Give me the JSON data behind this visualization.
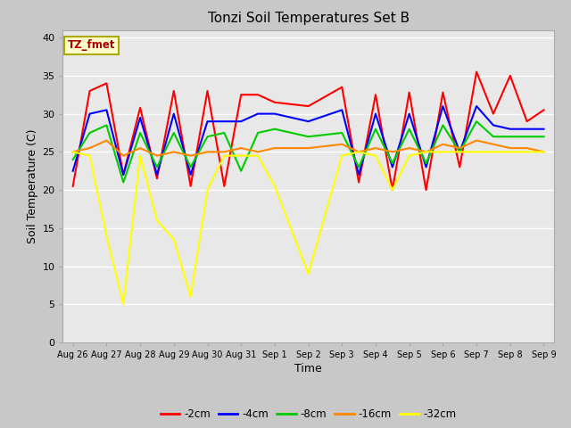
{
  "title": "Tonzi Soil Temperatures Set B",
  "xlabel": "Time",
  "ylabel": "Soil Temperature (C)",
  "annotation": "TZ_fmet",
  "ylim": [
    0,
    41
  ],
  "yticks": [
    0,
    5,
    10,
    15,
    20,
    25,
    30,
    35,
    40
  ],
  "x_labels": [
    "Aug 26",
    "Aug 27",
    "Aug 28",
    "Aug 29",
    "Aug 30",
    "Aug 31",
    "Sep 1",
    "Sep 2",
    "Sep 3",
    "Sep 4",
    "Sep 5",
    "Sep 6",
    "Sep 7",
    "Sep 8",
    "Sep 9"
  ],
  "fig_bg": "#c8c8c8",
  "plot_bg": "#e8e8e8",
  "grid_color": "#ffffff",
  "series": {
    "-2cm": {
      "color": "#ff0000",
      "x": [
        0,
        0.5,
        1,
        1.5,
        2,
        2.5,
        3,
        3.5,
        4,
        4.5,
        5,
        5.5,
        6,
        7,
        8,
        8.5,
        9,
        9.5,
        10,
        10.5,
        11,
        11.5,
        12,
        12.5,
        13,
        13.5,
        14
      ],
      "y": [
        20.5,
        33,
        34,
        22,
        30.8,
        21.5,
        33,
        20.5,
        33,
        20.5,
        32.5,
        32.5,
        31.5,
        31,
        33.5,
        21,
        32.5,
        20,
        32.8,
        20,
        32.8,
        23,
        35.5,
        30,
        35,
        29,
        30.5
      ]
    },
    "-4cm": {
      "color": "#0000ff",
      "x": [
        0,
        0.5,
        1,
        1.5,
        2,
        2.5,
        3,
        3.5,
        4,
        4.5,
        5,
        5.5,
        6,
        7,
        8,
        8.5,
        9,
        9.5,
        10,
        10.5,
        11,
        11.5,
        12,
        12.5,
        13,
        13.5,
        14
      ],
      "y": [
        22.5,
        30,
        30.5,
        22,
        29.5,
        22,
        30,
        22,
        29,
        29,
        29,
        30,
        30,
        29,
        30.5,
        22,
        30,
        23,
        30,
        23,
        31,
        25,
        31,
        28.5,
        28,
        28,
        28
      ]
    },
    "-8cm": {
      "color": "#00cc00",
      "x": [
        0,
        0.5,
        1,
        1.5,
        2,
        2.5,
        3,
        3.5,
        4,
        4.5,
        5,
        5.5,
        6,
        7,
        8,
        8.5,
        9,
        9.5,
        10,
        10.5,
        11,
        11.5,
        12,
        12.5,
        13,
        13.5,
        14
      ],
      "y": [
        24,
        27.5,
        28.5,
        21,
        27.5,
        23,
        27.5,
        23,
        27,
        27.5,
        22.5,
        27.5,
        28,
        27,
        27.5,
        23,
        28,
        23.5,
        28,
        23.5,
        28.5,
        25,
        29,
        27,
        27,
        27,
        27
      ]
    },
    "-16cm": {
      "color": "#ff8800",
      "x": [
        0,
        0.5,
        1,
        1.5,
        2,
        2.5,
        3,
        3.5,
        4,
        4.5,
        5,
        5.5,
        6,
        7,
        8,
        8.5,
        9,
        9.5,
        10,
        10.5,
        11,
        11.5,
        12,
        12.5,
        13,
        13.5,
        14
      ],
      "y": [
        25,
        25.5,
        26.5,
        24.5,
        25.5,
        24.5,
        25,
        24.5,
        25,
        25,
        25.5,
        25,
        25.5,
        25.5,
        26,
        25,
        25.5,
        25,
        25.5,
        25,
        26,
        25.5,
        26.5,
        26,
        25.5,
        25.5,
        25
      ]
    },
    "-32cm": {
      "color": "#ffff00",
      "x": [
        0,
        0.5,
        1,
        1.5,
        2,
        2.5,
        3,
        3.5,
        4,
        4.5,
        5,
        5.5,
        6,
        7,
        8,
        8.5,
        9,
        9.5,
        10,
        10.5,
        11,
        11.5,
        12,
        12.5,
        13,
        13.5,
        14
      ],
      "y": [
        25,
        24.5,
        14,
        5,
        24.5,
        16,
        13.5,
        6,
        20,
        24.5,
        24.5,
        24.5,
        20.5,
        9,
        24.5,
        25,
        24.5,
        20,
        24.5,
        25,
        25,
        25,
        25,
        25,
        25,
        25,
        25
      ]
    }
  },
  "legend_entries": [
    "-2cm",
    "-4cm",
    "-8cm",
    "-16cm",
    "-32cm"
  ],
  "legend_colors": [
    "#ff0000",
    "#0000ff",
    "#00cc00",
    "#ff8800",
    "#ffff00"
  ]
}
